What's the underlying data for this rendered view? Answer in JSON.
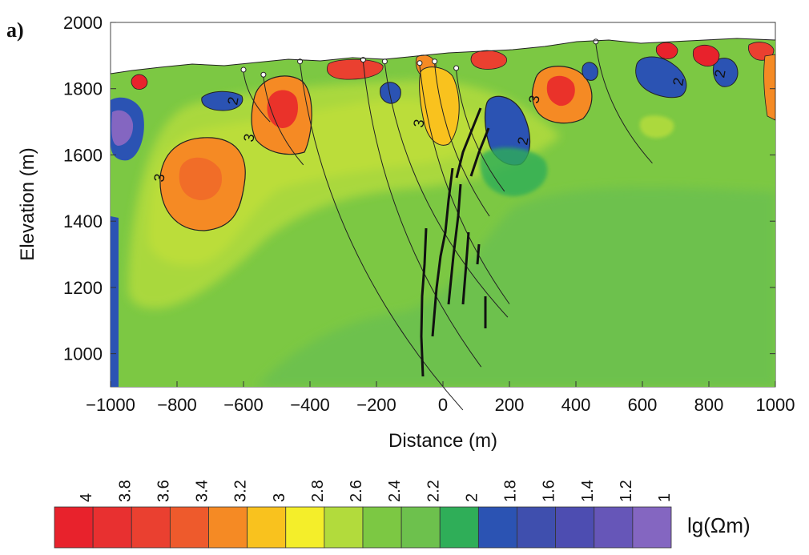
{
  "chart_data": {
    "type": "heatmap",
    "panel_label": "a)",
    "xlabel": "Distance (m)",
    "ylabel": "Elevation (m)",
    "xlim": [
      -1000,
      1000
    ],
    "ylim": [
      900,
      2000
    ],
    "x_ticks": [
      "−1000",
      "−800",
      "−600",
      "−400",
      "−200",
      "0",
      "200",
      "400",
      "600",
      "800",
      "1000"
    ],
    "y_ticks": [
      "1000",
      "1200",
      "1400",
      "1600",
      "1800",
      "2000"
    ],
    "x_tick_values": [
      -1000,
      -800,
      -600,
      -400,
      -200,
      0,
      200,
      400,
      600,
      800,
      1000
    ],
    "y_tick_values": [
      1000,
      1200,
      1400,
      1600,
      1800,
      2000
    ],
    "colorbar": {
      "unit": "lg(Ωm)",
      "labels": [
        "4",
        "3.8",
        "3.6",
        "3.4",
        "3.2",
        "3",
        "2.8",
        "2.6",
        "2.4",
        "2.2",
        "2",
        "1.8",
        "1.6",
        "1.4",
        "1.2",
        "1"
      ],
      "colors": [
        "#e8222c",
        "#e83030",
        "#ea4030",
        "#ee5a2c",
        "#f58a24",
        "#f9c21e",
        "#f4ee2a",
        "#b2db3c",
        "#7cc843",
        "#6dc14d",
        "#2fae58",
        "#2b53b3",
        "#3f4fae",
        "#4d4db1",
        "#6656b8",
        "#8466c1"
      ]
    },
    "contour_labels": [
      "3",
      "3",
      "3",
      "3",
      "2",
      "2",
      "2",
      "2"
    ],
    "boreholes": [
      {
        "top": [
          -430,
          1875
        ],
        "bottom": [
          60,
          830
        ]
      },
      {
        "top": [
          -240,
          1880
        ],
        "bottom": [
          115,
          960
        ]
      },
      {
        "top": [
          -175,
          1875
        ],
        "bottom": [
          195,
          1110
        ]
      },
      {
        "top": [
          -70,
          1870
        ],
        "bottom": [
          200,
          1150
        ]
      },
      {
        "top": [
          -25,
          1875
        ],
        "bottom": [
          140,
          1415
        ]
      },
      {
        "top": [
          40,
          1855
        ],
        "bottom": [
          185,
          1490
        ]
      },
      {
        "top": [
          460,
          1935
        ],
        "bottom": [
          630,
          1575
        ]
      },
      {
        "top": [
          -540,
          1835
        ],
        "bottom": [
          -420,
          1570
        ]
      },
      {
        "top": [
          -600,
          1850
        ],
        "bottom": [
          -520,
          1700
        ]
      }
    ]
  },
  "colors": {
    "background_green": "#7cc843",
    "deep_green": "#6dc14d",
    "axis": "#222222"
  }
}
